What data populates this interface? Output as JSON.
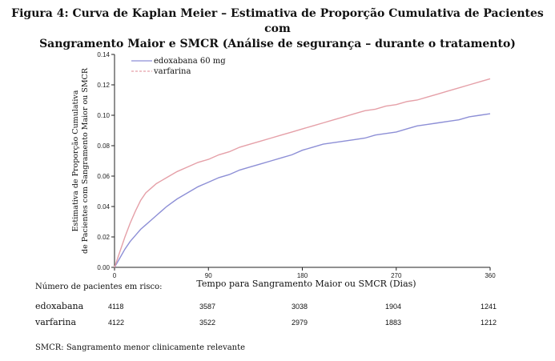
{
  "figure": {
    "title_line1": "Figura 4: Curva de Kaplan Meier – Estimativa de Proporção Cumulativa de Pacientes com",
    "title_line2": "Sangramento Maior e SMCR (Análise de segurança – durante o tratamento)"
  },
  "chart_data": {
    "type": "line",
    "xlabel": "Tempo para Sangramento Maior ou SMCR (Dias)",
    "ylabel_line1": "Estimativa de Proporção Cumulativa",
    "ylabel_line2": "de Pacientes com Sangramento Maior ou SMCR",
    "xlim": [
      0,
      360
    ],
    "ylim": [
      0,
      0.14
    ],
    "xticks": [
      "0",
      "90",
      "180",
      "270",
      "360"
    ],
    "yticks": [
      "0.00",
      "0.02",
      "0.04",
      "0.06",
      "0.08",
      "0.10",
      "0.12",
      "0.14"
    ],
    "grid": false,
    "legend_position": "top-left",
    "series": [
      {
        "name": "edoxabana 60 mg",
        "color": "#8d8fd6",
        "style": "solid",
        "x": [
          0,
          5,
          10,
          15,
          20,
          25,
          30,
          35,
          40,
          45,
          50,
          60,
          70,
          80,
          90,
          100,
          110,
          120,
          130,
          140,
          150,
          160,
          170,
          180,
          190,
          200,
          210,
          220,
          230,
          240,
          250,
          260,
          270,
          280,
          290,
          300,
          310,
          320,
          330,
          340,
          350,
          360
        ],
        "values": [
          0,
          0.006,
          0.012,
          0.017,
          0.021,
          0.025,
          0.028,
          0.031,
          0.034,
          0.037,
          0.04,
          0.045,
          0.049,
          0.053,
          0.056,
          0.059,
          0.061,
          0.064,
          0.066,
          0.068,
          0.07,
          0.072,
          0.074,
          0.077,
          0.079,
          0.081,
          0.082,
          0.083,
          0.084,
          0.085,
          0.087,
          0.088,
          0.089,
          0.091,
          0.093,
          0.094,
          0.095,
          0.096,
          0.097,
          0.099,
          0.1,
          0.101
        ]
      },
      {
        "name": "varfarina",
        "color": "#e5a0a8",
        "style": "dashed",
        "x": [
          0,
          5,
          10,
          15,
          20,
          25,
          30,
          35,
          40,
          45,
          50,
          60,
          70,
          80,
          90,
          100,
          110,
          120,
          130,
          140,
          150,
          160,
          170,
          180,
          190,
          200,
          210,
          220,
          230,
          240,
          250,
          260,
          270,
          280,
          290,
          300,
          310,
          320,
          330,
          340,
          350,
          360
        ],
        "values": [
          0,
          0.01,
          0.02,
          0.029,
          0.037,
          0.044,
          0.049,
          0.052,
          0.055,
          0.057,
          0.059,
          0.063,
          0.066,
          0.069,
          0.071,
          0.074,
          0.076,
          0.079,
          0.081,
          0.083,
          0.085,
          0.087,
          0.089,
          0.091,
          0.093,
          0.095,
          0.097,
          0.099,
          0.101,
          0.103,
          0.104,
          0.106,
          0.107,
          0.109,
          0.11,
          0.112,
          0.114,
          0.116,
          0.118,
          0.12,
          0.122,
          0.124
        ]
      }
    ]
  },
  "risk_table": {
    "header": "Número de pacientes em risco:",
    "rows": [
      {
        "label": "edoxabana",
        "values": [
          "4118",
          "3587",
          "3038",
          "1904",
          "1241"
        ]
      },
      {
        "label": "varfarina",
        "values": [
          "4122",
          "3522",
          "2979",
          "1883",
          "1212"
        ]
      }
    ]
  },
  "footnote": "SMCR: Sangramento menor clinicamente relevante"
}
